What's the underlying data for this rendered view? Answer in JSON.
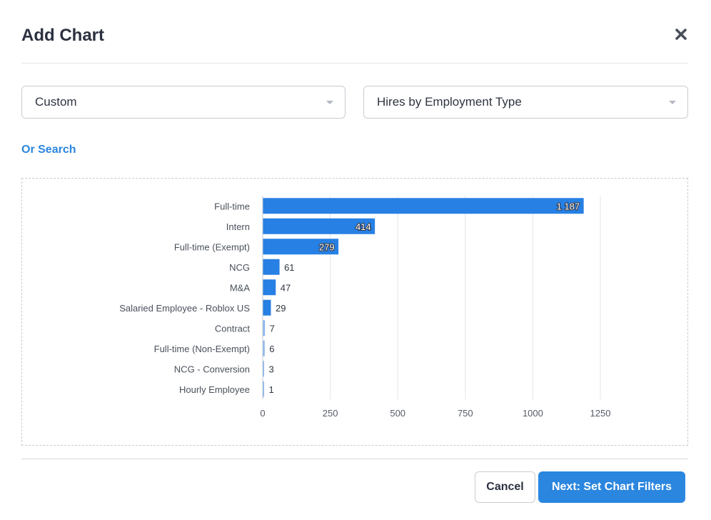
{
  "modal": {
    "title": "Add Chart",
    "close_icon": "close-icon"
  },
  "selects": {
    "type_value": "Custom",
    "chart_value": "Hires by Employment Type"
  },
  "links": {
    "or_search": "Or Search"
  },
  "buttons": {
    "cancel": "Cancel",
    "next": "Next: Set Chart Filters"
  },
  "colors": {
    "accent": "#2a86df",
    "bar": "#2780e3",
    "bar_light": "#8ab8ef"
  },
  "chart_data": {
    "type": "bar",
    "orientation": "horizontal",
    "categories": [
      "Full-time",
      "Intern",
      "Full-time (Exempt)",
      "NCG",
      "M&A",
      "Salaried Employee - Roblox US",
      "Contract",
      "Full-time (Non-Exempt)",
      "NCG - Conversion",
      "Hourly Employee"
    ],
    "values": [
      1187,
      414,
      279,
      61,
      47,
      29,
      7,
      6,
      3,
      1
    ],
    "value_labels": [
      "1 187",
      "414",
      "279",
      "61",
      "47",
      "29",
      "7",
      "6",
      "3",
      "1"
    ],
    "xticks": [
      0,
      250,
      500,
      750,
      1000,
      1250
    ],
    "xlim": [
      0,
      1250
    ],
    "grid": true,
    "legend": "none"
  }
}
